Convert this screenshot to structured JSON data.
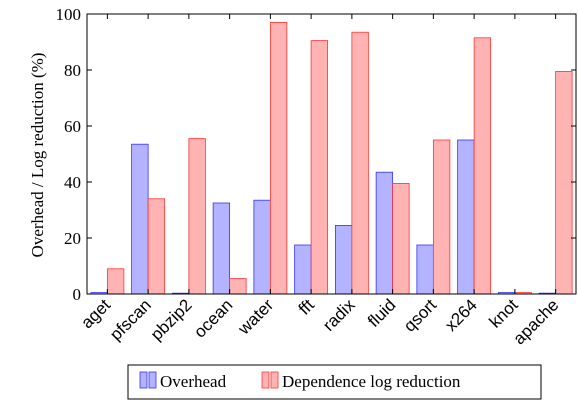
{
  "chart_data": {
    "type": "bar",
    "ylabel": "Overhead / Log reduction (%)",
    "xlabel": "",
    "ylim": [
      0,
      100
    ],
    "yticks": [
      0,
      20,
      40,
      60,
      80,
      100
    ],
    "categories": [
      "aget",
      "pfscan",
      "pbzip2",
      "ocean",
      "water",
      "fft",
      "radix",
      "fluid",
      "qsort",
      "x264",
      "knot",
      "apache"
    ],
    "series": [
      {
        "name": "Overhead",
        "fill": "#b3b3ff",
        "stroke": "#3333ff",
        "values": [
          0.5,
          53.5,
          0.3,
          32.5,
          33.5,
          17.5,
          24.5,
          43.5,
          17.5,
          55,
          0.5,
          0.3
        ]
      },
      {
        "name": "Dependence log reduction",
        "fill": "#ffb3b3",
        "stroke": "#ff3333",
        "values": [
          9,
          34,
          55.5,
          5.5,
          97,
          90.5,
          93.5,
          39.5,
          55,
          91.5,
          0.5,
          79.5
        ]
      }
    ],
    "legend_position": "bottom-center",
    "grid": false
  }
}
